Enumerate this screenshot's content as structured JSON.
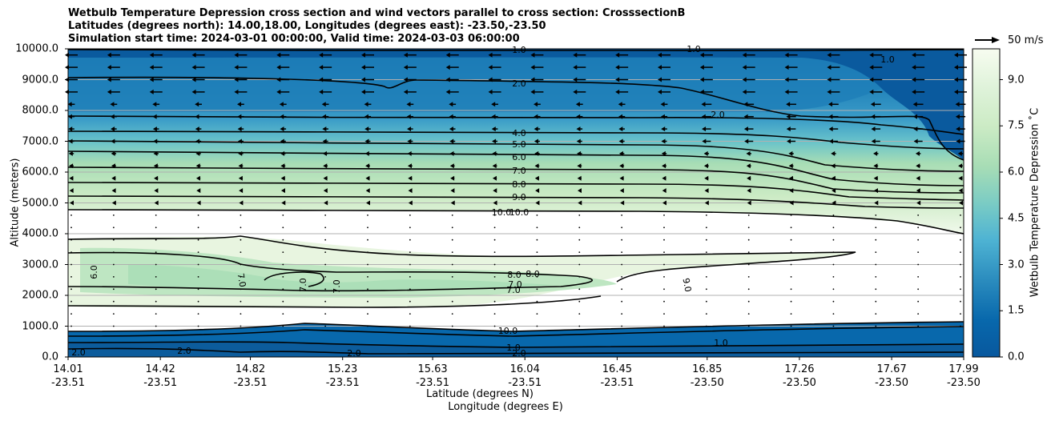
{
  "chart_data": {
    "type": "contour",
    "title_lines": [
      "Wetbulb Temperature Depression cross section and wind vectors parallel to cross section: CrosssectionB",
      "Latitudes (degrees north): 14.00,18.00, Longitudes (degrees east): -23.50,-23.50",
      "Simulation start time: 2024-03-01 00:00:00, Valid time: 2024-03-03 06:00:00"
    ],
    "xlabel_line1": "Latitude (degrees N)",
    "xlabel_line2": "Longitude (degrees E)",
    "ylabel": "Altitude (meters)",
    "ylim": [
      0,
      10000
    ],
    "yticks": [
      "0.0",
      "1000.0",
      "2000.0",
      "3000.0",
      "4000.0",
      "5000.0",
      "6000.0",
      "7000.0",
      "8000.0",
      "9000.0",
      "10000.0"
    ],
    "ytick_values": [
      0,
      1000,
      2000,
      3000,
      4000,
      5000,
      6000,
      7000,
      8000,
      9000,
      10000
    ],
    "xlim": [
      14.01,
      17.99
    ],
    "xtick_values": [
      14.01,
      14.42,
      14.82,
      15.23,
      15.63,
      16.04,
      16.45,
      16.85,
      17.26,
      17.67,
      17.99
    ],
    "xticks_lat": [
      "14.01",
      "14.42",
      "14.82",
      "15.23",
      "15.63",
      "16.04",
      "16.45",
      "16.85",
      "17.26",
      "17.67",
      "17.99"
    ],
    "xticks_lon": [
      "-23.51",
      "-23.51",
      "-23.51",
      "-23.51",
      "-23.51",
      "-23.51",
      "-23.51",
      "-23.50",
      "-23.50",
      "-23.50",
      "-23.50"
    ],
    "grid": "horizontal",
    "colorbar": {
      "label": "Wetbulb Temperature Depression ˚C",
      "range": [
        0,
        10
      ],
      "ticks": [
        "0.0",
        "1.5",
        "3.0",
        "4.5",
        "6.0",
        "7.5",
        "9.0"
      ],
      "tick_values": [
        0,
        1.5,
        3,
        4.5,
        6,
        7.5,
        9
      ],
      "colormap": "GnBu_r",
      "colors": [
        "#08589e",
        "#0868ac",
        "#1f7fb8",
        "#2b8cbe",
        "#3a9cc8",
        "#4eb3d3",
        "#68c2ca",
        "#7bccc4",
        "#99d8c9",
        "#a8ddb5",
        "#bee6c2",
        "#ccebc5",
        "#e0f3db",
        "#eef8e8",
        "#f7fcf0"
      ]
    },
    "wind_key": {
      "label": "50 m/s",
      "speed": 50
    },
    "contour_labels": [
      "1.0",
      "2.0",
      "2.0",
      "1.0",
      "1.0",
      "4.0",
      "5.0",
      "6.0",
      "7.0",
      "8.0",
      "9.0",
      "10.0",
      "10.0",
      "6.0",
      "7.0",
      "7.0",
      "7.0",
      "8.0",
      "8.0",
      "7.0",
      "7.0",
      "9.0",
      "10.0",
      "1.0",
      "2.0",
      "2.0",
      "1.0",
      "2.0",
      "2.0"
    ]
  }
}
